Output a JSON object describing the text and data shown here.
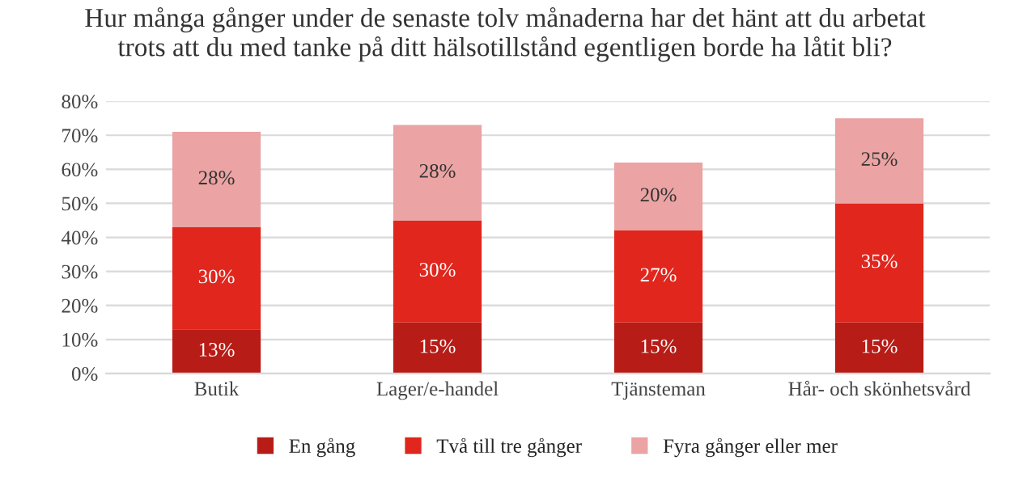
{
  "chart_data": {
    "type": "bar",
    "stacked": true,
    "title": "Hur många gånger under de senaste tolv månaderna har det hänt att du arbetat\ntrots att du med tanke på ditt hälsotillstånd egentligen borde ha låtit bli?",
    "categories": [
      "Butik",
      "Lager/e-handel",
      "Tjänsteman",
      "Hår- och skönhetsvård"
    ],
    "series": [
      {
        "name": "En gång",
        "color": "#b81c17",
        "values": [
          13,
          15,
          15,
          15
        ],
        "value_labels": [
          "13%",
          "15%",
          "15%",
          "15%"
        ]
      },
      {
        "name": "Två till tre gånger",
        "color": "#e0261d",
        "values": [
          30,
          30,
          27,
          35
        ],
        "value_labels": [
          "30%",
          "30%",
          "27%",
          "35%"
        ]
      },
      {
        "name": "Fyra gånger eller mer",
        "color": "#eba3a3",
        "values": [
          28,
          28,
          20,
          25
        ],
        "value_labels": [
          "28%",
          "28%",
          "20%",
          "25%"
        ]
      }
    ],
    "ylim": [
      0,
      80
    ],
    "yticks": [
      {
        "value": 0,
        "label": "0%"
      },
      {
        "value": 10,
        "label": "10%"
      },
      {
        "value": 20,
        "label": "20%"
      },
      {
        "value": 30,
        "label": "30%"
      },
      {
        "value": 40,
        "label": "40%"
      },
      {
        "value": 50,
        "label": "50%"
      },
      {
        "value": 60,
        "label": "60%"
      },
      {
        "value": 70,
        "label": "70%"
      },
      {
        "value": 80,
        "label": "80%"
      }
    ],
    "grid": "y",
    "legend": "bottom"
  }
}
